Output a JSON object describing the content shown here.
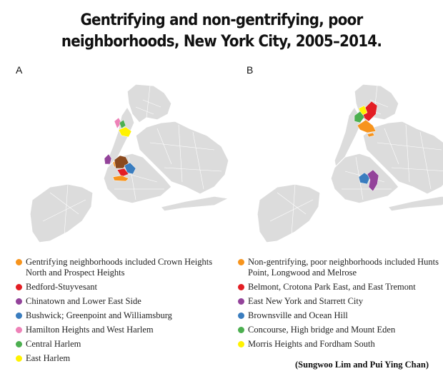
{
  "title": "Gentrifying and non-gentrifying, poor neighborhoods, New York City, 2005–2014.",
  "legend_a": {
    "label": "A",
    "items": [
      {
        "text": "Gentrifying neighborhoods included Crown Heights North and Prospect Heights",
        "color": "#f7941d"
      },
      {
        "text": "Bedford-Stuyvesant",
        "color": "#e31e24"
      },
      {
        "text": "Chinatown and Lower East Side",
        "color": "#93439a"
      },
      {
        "text": "Bushwick; Greenpoint and Williamsburg",
        "color": "#3a7dbf"
      },
      {
        "text": "Hamilton Heights and West Harlem",
        "color": "#ee82b8"
      },
      {
        "text": "Central Harlem",
        "color": "#4caf50"
      },
      {
        "text": "East Harlem",
        "color": "#fff200"
      }
    ]
  },
  "legend_b": {
    "label": "B",
    "items": [
      {
        "text": "Non-gentrifying, poor neighborhoods included Hunts Point, Longwood and Melrose",
        "color": "#f7941d"
      },
      {
        "text": "Belmont, Crotona Park East, and East Tremont",
        "color": "#e31e24"
      },
      {
        "text": "East New York and Starrett City",
        "color": "#93439a"
      },
      {
        "text": "Brownsville and Ocean Hill",
        "color": "#3a7dbf"
      },
      {
        "text": "Concourse, High bridge and Mount Eden",
        "color": "#4caf50"
      },
      {
        "text": "Morris Heights and Fordham South",
        "color": "#fff200"
      }
    ]
  },
  "credit": "(Sungwoo Lim and Pui Ying Chan)"
}
